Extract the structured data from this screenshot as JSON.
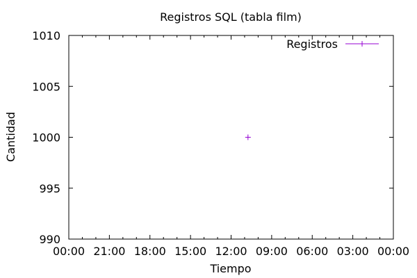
{
  "chart_data": {
    "type": "scatter",
    "title": "Registros SQL (tabla film)",
    "xlabel": "Tiempo",
    "ylabel": "Cantidad",
    "x_ticks": [
      "00:00",
      "21:00",
      "18:00",
      "15:00",
      "12:00",
      "09:00",
      "06:00",
      "03:00",
      "00:00"
    ],
    "y_ticks": [
      990,
      995,
      1000,
      1005,
      1010
    ],
    "ylim": [
      990,
      1010
    ],
    "grid": false,
    "legend_position": "top-right",
    "series": [
      {
        "name": "Registros",
        "color": "#9400d3",
        "marker": "plus",
        "points": [
          {
            "x": "10:45",
            "y": 1000
          }
        ]
      }
    ]
  }
}
